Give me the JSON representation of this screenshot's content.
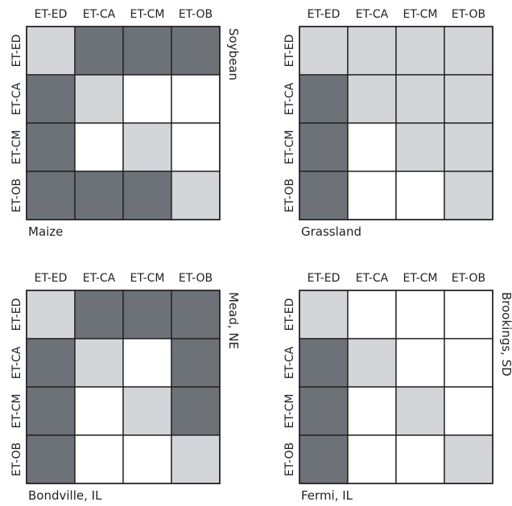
{
  "colors": {
    "dark": "#6d7278",
    "light": "#d3d5d9",
    "white": "#ffffff",
    "line": "#231f20"
  },
  "legend_note": "",
  "chart_data": [
    {
      "type": "heatmap",
      "categories": [
        "ET-ED",
        "ET-CA",
        "ET-CM",
        "ET-OB"
      ],
      "bottom_label": "Maize",
      "side_label": "Soybean",
      "values": [
        [
          1,
          2,
          2,
          2
        ],
        [
          2,
          1,
          0,
          0
        ],
        [
          2,
          0,
          1,
          0
        ],
        [
          2,
          2,
          2,
          1
        ]
      ]
    },
    {
      "type": "heatmap",
      "categories": [
        "ET-ED",
        "ET-CA",
        "ET-CM",
        "ET-OB"
      ],
      "bottom_label": "Grassland",
      "side_label": "",
      "values": [
        [
          1,
          1,
          1,
          1
        ],
        [
          2,
          1,
          1,
          1
        ],
        [
          2,
          0,
          1,
          1
        ],
        [
          2,
          0,
          0,
          1
        ]
      ]
    },
    {
      "type": "heatmap",
      "categories": [
        "ET-ED",
        "ET-CA",
        "ET-CM",
        "ET-OB"
      ],
      "bottom_label": "Bondville, IL",
      "side_label": "Mead, NE",
      "values": [
        [
          1,
          2,
          2,
          2
        ],
        [
          2,
          1,
          0,
          2
        ],
        [
          2,
          0,
          1,
          2
        ],
        [
          2,
          0,
          0,
          1
        ]
      ]
    },
    {
      "type": "heatmap",
      "categories": [
        "ET-ED",
        "ET-CA",
        "ET-CM",
        "ET-OB"
      ],
      "bottom_label": "Fermi, IL",
      "side_label": "Brookings, SD",
      "values": [
        [
          1,
          0,
          0,
          0
        ],
        [
          2,
          1,
          0,
          0
        ],
        [
          2,
          0,
          1,
          0
        ],
        [
          2,
          0,
          0,
          1
        ]
      ]
    }
  ]
}
